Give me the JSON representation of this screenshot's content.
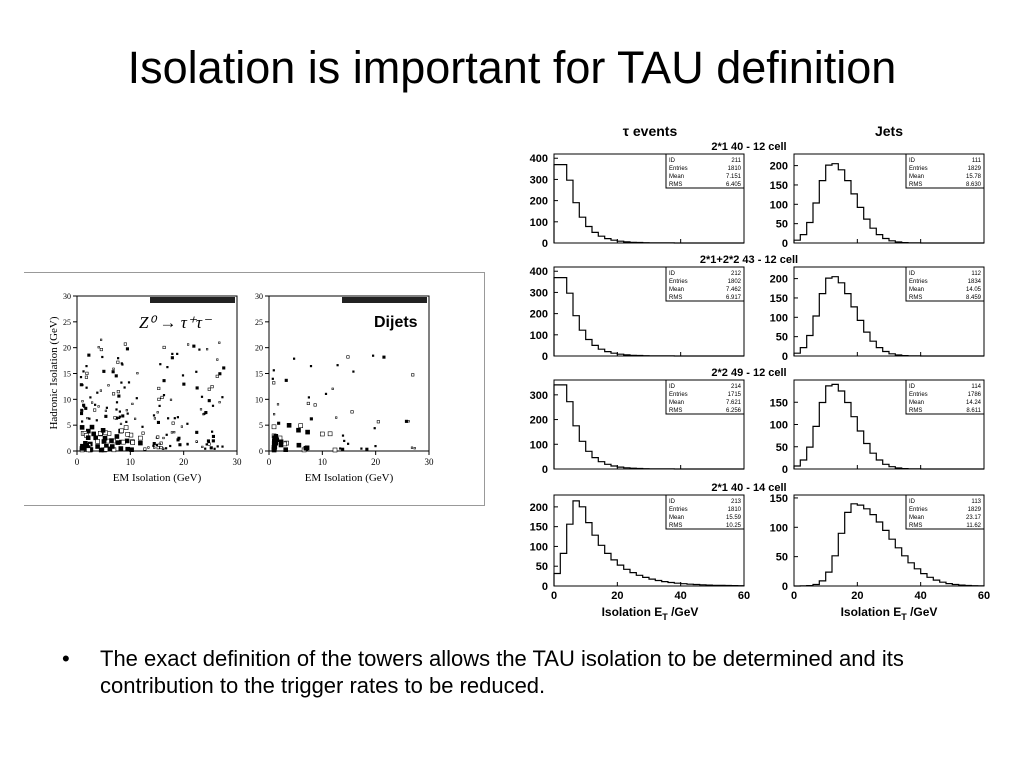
{
  "slide": {
    "title": "Isolation is important for TAU definition",
    "bullet_char": "•",
    "bullet_text": "The exact definition of the towers allows the TAU isolation to be determined and its contribution to the trigger rates to be reduced."
  },
  "left_figure": {
    "panels": [
      {
        "label": "Z⁰ → τ⁺τ⁻",
        "ylabel": "Hadronic Isolation (GeV)",
        "xlabel": "EM Isolation (GeV)",
        "xticks": [
          "0",
          "10",
          "20",
          "30"
        ],
        "yticks": [
          "0",
          "5",
          "10",
          "15",
          "20",
          "25",
          "30"
        ]
      },
      {
        "label": "Dijets",
        "ylabel": "",
        "xlabel": "EM Isolation (GeV)",
        "xticks": [
          "0",
          "10",
          "20",
          "30"
        ],
        "yticks": [
          "0",
          "5",
          "10",
          "15",
          "20",
          "25",
          "30"
        ]
      }
    ]
  },
  "right_figure": {
    "col_titles": [
      "τ events",
      "Jets"
    ],
    "xlabel": "Isolation E",
    "xlabel_sub": "T",
    "xlabel_unit": " /GeV",
    "xticks": [
      "0",
      "20",
      "40",
      "60"
    ],
    "rows": [
      {
        "title": "2*1 40 - 12 cell",
        "left": {
          "yticks": [
            "0",
            "100",
            "200",
            "300",
            "400"
          ],
          "ymax": 420,
          "stats": {
            "ID": "211",
            "Entries": "1810",
            "Mean": "7.151",
            "RMS": "6.405"
          }
        },
        "right": {
          "yticks": [
            "0",
            "50",
            "100",
            "150",
            "200"
          ],
          "ymax": 230,
          "stats": {
            "ID": "111",
            "Entries": "1829",
            "Mean": "15.78",
            "RMS": "8.630"
          }
        }
      },
      {
        "title": "2*1+2*2 43 - 12 cell",
        "left": {
          "yticks": [
            "0",
            "100",
            "200",
            "300",
            "400"
          ],
          "ymax": 420,
          "stats": {
            "ID": "212",
            "Entries": "1802",
            "Mean": "7.462",
            "RMS": "6.917"
          }
        },
        "right": {
          "yticks": [
            "0",
            "50",
            "100",
            "150",
            "200"
          ],
          "ymax": 230,
          "stats": {
            "ID": "112",
            "Entries": "1834",
            "Mean": "14.05",
            "RMS": "8.459"
          }
        }
      },
      {
        "title": "2*2 49 - 12 cell",
        "left": {
          "yticks": [
            "0",
            "100",
            "200",
            "300"
          ],
          "ymax": 360,
          "stats": {
            "ID": "214",
            "Entries": "1715",
            "Mean": "7.621",
            "RMS": "6.256"
          }
        },
        "right": {
          "yticks": [
            "0",
            "50",
            "100",
            "150"
          ],
          "ymax": 200,
          "stats": {
            "ID": "114",
            "Entries": "1786",
            "Mean": "14.24",
            "RMS": "8.611"
          }
        }
      },
      {
        "title": "2*1 40 - 14 cell",
        "left": {
          "yticks": [
            "0",
            "50",
            "100",
            "150",
            "200"
          ],
          "ymax": 230,
          "stats": {
            "ID": "213",
            "Entries": "1810",
            "Mean": "15.59",
            "RMS": "10.25"
          }
        },
        "right": {
          "yticks": [
            "0",
            "50",
            "100",
            "150"
          ],
          "ymax": 155,
          "stats": {
            "ID": "113",
            "Entries": "1829",
            "Mean": "23.17",
            "RMS": "11.62"
          }
        }
      }
    ]
  }
}
